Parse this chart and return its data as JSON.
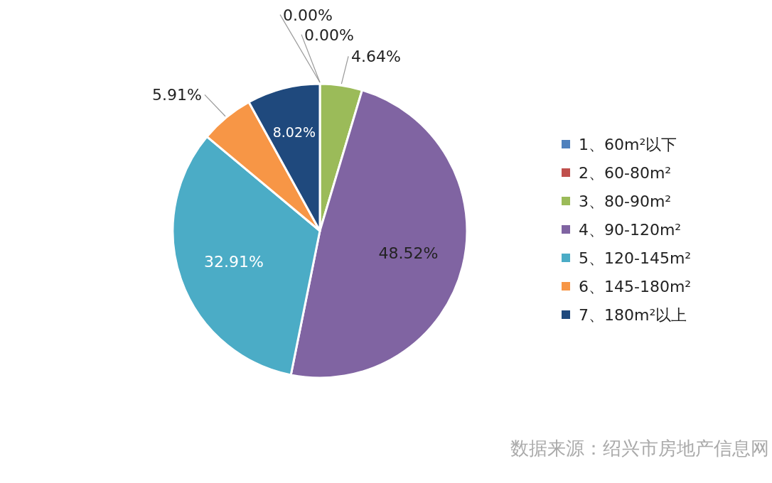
{
  "chart_data": {
    "type": "pie",
    "categories": [
      "1、60m²以下",
      "2、60-80m²",
      "3、80-90m²",
      "4、90-120m²",
      "5、120-145m²",
      "6、145-180m²",
      "7、180m²以上"
    ],
    "values": [
      0,
      0,
      4.64,
      48.52,
      32.91,
      5.91,
      8.02
    ],
    "colors": [
      "#4f81bd",
      "#c0504d",
      "#9bbb59",
      "#8064a2",
      "#4bacc6",
      "#f79646",
      "#1f497d"
    ],
    "value_labels": [
      "0.00%",
      "0.00%",
      "4.64%",
      "48.52%",
      "32.91%",
      "5.91%",
      "8.02%"
    ],
    "legend": "right",
    "annotations": [
      "数据来源：绍兴市房地产信息网"
    ]
  }
}
